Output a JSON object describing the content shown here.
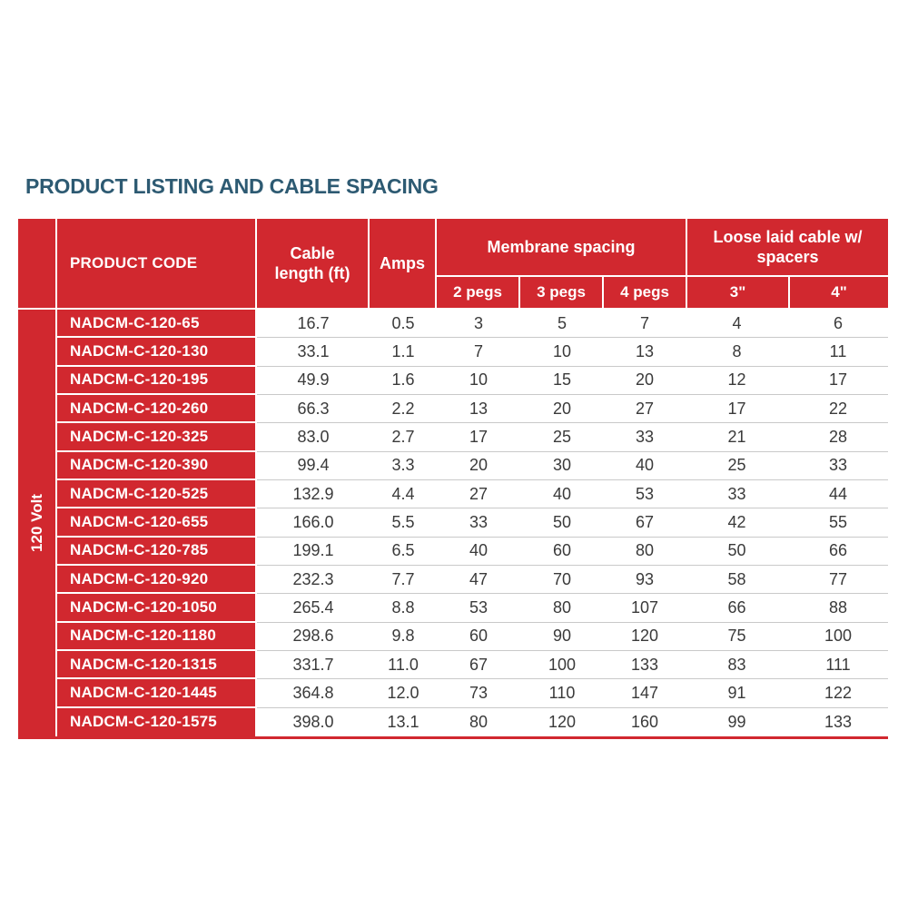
{
  "title": "PRODUCT LISTING AND CABLE SPACING",
  "colors": {
    "accent_red": "#d1282f",
    "title_text": "#2d5a72",
    "body_text": "#3a3a3a",
    "row_divider": "#c9c9c9",
    "header_text": "#ffffff"
  },
  "table": {
    "volt_label": "120 Volt",
    "header": {
      "product_code": "PRODUCT CODE",
      "cable_length": "Cable length (ft)",
      "amps": "Amps",
      "membrane_group": "Membrane spacing",
      "membrane_cols": [
        "2 pegs",
        "3 pegs",
        "4 pegs"
      ],
      "loose_group": "Loose laid cable w/ spacers",
      "loose_cols": [
        "3\"",
        "4\""
      ]
    },
    "rows": [
      {
        "code": "NADCM-C-120-65",
        "cable_length": "16.7",
        "amps": "0.5",
        "pegs_2": "3",
        "pegs_3": "5",
        "pegs_4": "7",
        "spacer_3in": "4",
        "spacer_4in": "6"
      },
      {
        "code": "NADCM-C-120-130",
        "cable_length": "33.1",
        "amps": "1.1",
        "pegs_2": "7",
        "pegs_3": "10",
        "pegs_4": "13",
        "spacer_3in": "8",
        "spacer_4in": "11"
      },
      {
        "code": "NADCM-C-120-195",
        "cable_length": "49.9",
        "amps": "1.6",
        "pegs_2": "10",
        "pegs_3": "15",
        "pegs_4": "20",
        "spacer_3in": "12",
        "spacer_4in": "17"
      },
      {
        "code": "NADCM-C-120-260",
        "cable_length": "66.3",
        "amps": "2.2",
        "pegs_2": "13",
        "pegs_3": "20",
        "pegs_4": "27",
        "spacer_3in": "17",
        "spacer_4in": "22"
      },
      {
        "code": "NADCM-C-120-325",
        "cable_length": "83.0",
        "amps": "2.7",
        "pegs_2": "17",
        "pegs_3": "25",
        "pegs_4": "33",
        "spacer_3in": "21",
        "spacer_4in": "28"
      },
      {
        "code": "NADCM-C-120-390",
        "cable_length": "99.4",
        "amps": "3.3",
        "pegs_2": "20",
        "pegs_3": "30",
        "pegs_4": "40",
        "spacer_3in": "25",
        "spacer_4in": "33"
      },
      {
        "code": "NADCM-C-120-525",
        "cable_length": "132.9",
        "amps": "4.4",
        "pegs_2": "27",
        "pegs_3": "40",
        "pegs_4": "53",
        "spacer_3in": "33",
        "spacer_4in": "44"
      },
      {
        "code": "NADCM-C-120-655",
        "cable_length": "166.0",
        "amps": "5.5",
        "pegs_2": "33",
        "pegs_3": "50",
        "pegs_4": "67",
        "spacer_3in": "42",
        "spacer_4in": "55"
      },
      {
        "code": "NADCM-C-120-785",
        "cable_length": "199.1",
        "amps": "6.5",
        "pegs_2": "40",
        "pegs_3": "60",
        "pegs_4": "80",
        "spacer_3in": "50",
        "spacer_4in": "66"
      },
      {
        "code": "NADCM-C-120-920",
        "cable_length": "232.3",
        "amps": "7.7",
        "pegs_2": "47",
        "pegs_3": "70",
        "pegs_4": "93",
        "spacer_3in": "58",
        "spacer_4in": "77"
      },
      {
        "code": "NADCM-C-120-1050",
        "cable_length": "265.4",
        "amps": "8.8",
        "pegs_2": "53",
        "pegs_3": "80",
        "pegs_4": "107",
        "spacer_3in": "66",
        "spacer_4in": "88"
      },
      {
        "code": "NADCM-C-120-1180",
        "cable_length": "298.6",
        "amps": "9.8",
        "pegs_2": "60",
        "pegs_3": "90",
        "pegs_4": "120",
        "spacer_3in": "75",
        "spacer_4in": "100"
      },
      {
        "code": "NADCM-C-120-1315",
        "cable_length": "331.7",
        "amps": "11.0",
        "pegs_2": "67",
        "pegs_3": "100",
        "pegs_4": "133",
        "spacer_3in": "83",
        "spacer_4in": "111"
      },
      {
        "code": "NADCM-C-120-1445",
        "cable_length": "364.8",
        "amps": "12.0",
        "pegs_2": "73",
        "pegs_3": "110",
        "pegs_4": "147",
        "spacer_3in": "91",
        "spacer_4in": "122"
      },
      {
        "code": "NADCM-C-120-1575",
        "cable_length": "398.0",
        "amps": "13.1",
        "pegs_2": "80",
        "pegs_3": "120",
        "pegs_4": "160",
        "spacer_3in": "99",
        "spacer_4in": "133"
      }
    ]
  }
}
